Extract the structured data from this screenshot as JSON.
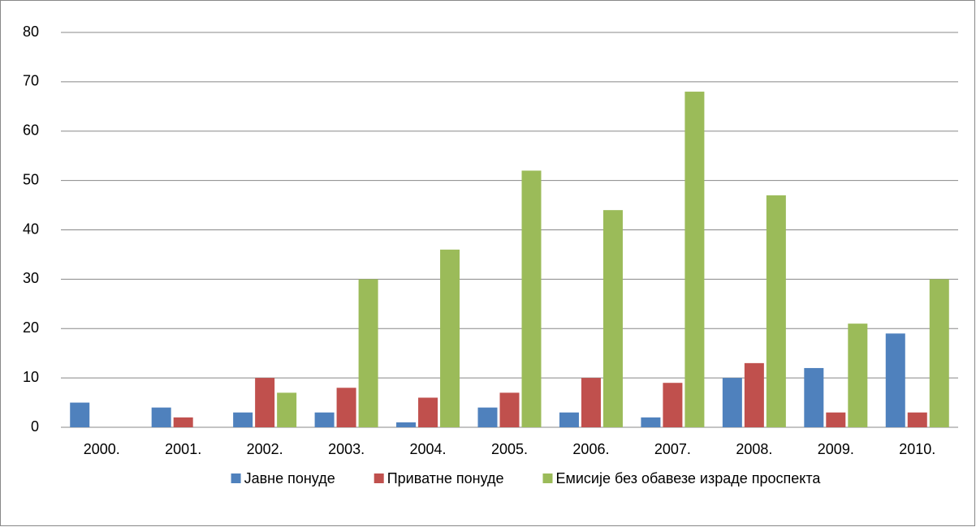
{
  "chart_data": {
    "type": "bar",
    "categories": [
      "2000.",
      "2001.",
      "2002.",
      "2003.",
      "2004.",
      "2005.",
      "2006.",
      "2007.",
      "2008.",
      "2009.",
      "2010."
    ],
    "series": [
      {
        "name": "Јавне понуде",
        "color": "#4f81bd",
        "values": [
          5,
          4,
          3,
          3,
          1,
          4,
          3,
          2,
          10,
          12,
          19
        ]
      },
      {
        "name": "Приватне понуде",
        "color": "#c0504d",
        "values": [
          0,
          2,
          10,
          8,
          6,
          7,
          10,
          9,
          13,
          3,
          3
        ]
      },
      {
        "name": "Емисије без обавезе израде проспекта",
        "color": "#9bbb59",
        "values": [
          0,
          0,
          7,
          30,
          36,
          52,
          44,
          68,
          47,
          21,
          30
        ]
      }
    ],
    "ylim": [
      0,
      80
    ],
    "yticks": [
      0,
      10,
      20,
      30,
      40,
      50,
      60,
      70,
      80
    ],
    "grid": true,
    "legend": "bottom"
  }
}
